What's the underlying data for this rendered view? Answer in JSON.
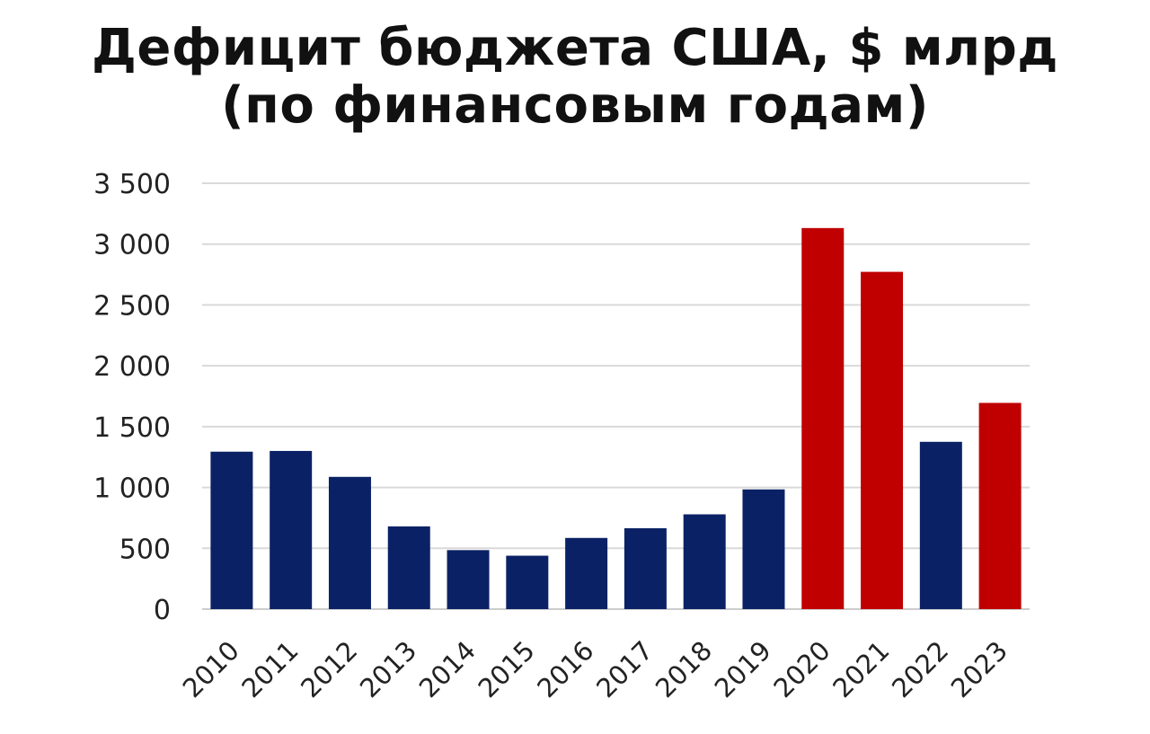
{
  "chart_data": {
    "type": "bar",
    "title": "Дефицит бюджета США, $ млрд",
    "subtitle": "(по финансовым годам)",
    "categories": [
      "2010",
      "2011",
      "2012",
      "2013",
      "2014",
      "2015",
      "2016",
      "2017",
      "2018",
      "2019",
      "2020",
      "2021",
      "2022",
      "2023"
    ],
    "values": [
      1294,
      1300,
      1087,
      680,
      485,
      439,
      585,
      665,
      779,
      984,
      3132,
      2772,
      1375,
      1695
    ],
    "highlight": [
      false,
      false,
      false,
      false,
      false,
      false,
      false,
      false,
      false,
      false,
      true,
      true,
      false,
      true
    ],
    "ylim": [
      0,
      3500
    ],
    "yticks": [
      0,
      500,
      1000,
      1500,
      2000,
      2500,
      3000,
      3500
    ],
    "ytick_labels": [
      "0",
      "500",
      "1 000",
      "1 500",
      "2 000",
      "2 500",
      "3 000",
      "3 500"
    ],
    "grid": true,
    "colors": {
      "default": "#0a2265",
      "highlight": "#c00000",
      "grid": "#d9d9d9",
      "axis": "#cccccc"
    }
  }
}
